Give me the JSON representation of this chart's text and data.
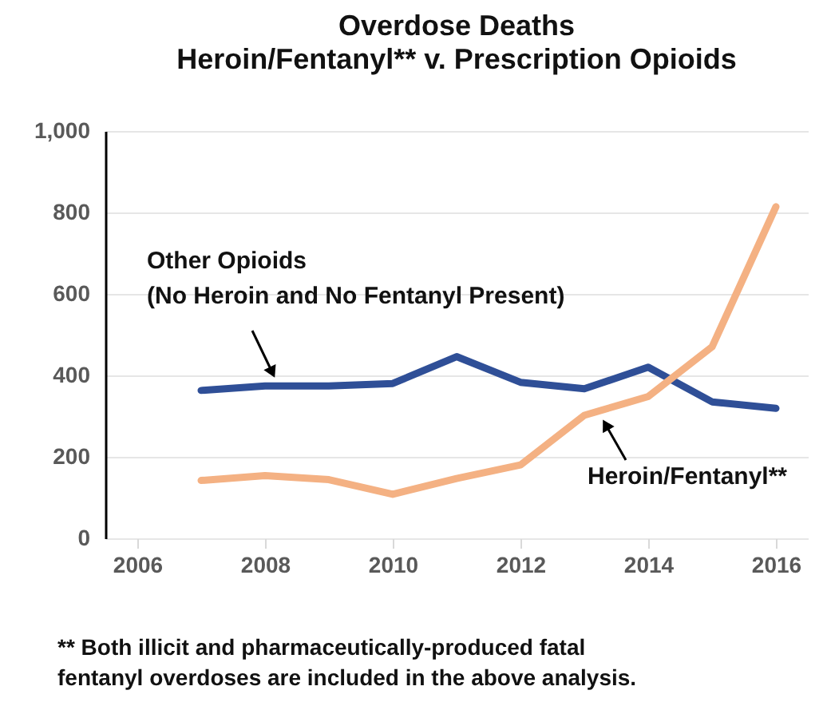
{
  "chart_data": {
    "type": "line",
    "title": "Overdose Deaths",
    "subtitle": "Heroin/Fentanyl** v. Prescription Opioids",
    "x": [
      2007,
      2008,
      2009,
      2010,
      2011,
      2012,
      2013,
      2014,
      2015,
      2016
    ],
    "series": [
      {
        "name": "Other Opioids\n(No Heroin and No Fentanyl Present)",
        "color": "#2f4f97",
        "values": [
          363,
          374,
          374,
          380,
          446,
          383,
          367,
          420,
          335,
          319
        ]
      },
      {
        "name": "Heroin/Fentanyl**",
        "color": "#f4b183",
        "values": [
          142,
          154,
          144,
          108,
          147,
          180,
          302,
          348,
          470,
          814
        ]
      }
    ],
    "xlim": [
      2005.5,
      2016.5
    ],
    "xticks": [
      2006,
      2008,
      2010,
      2012,
      2014,
      2016
    ],
    "ylim": [
      0,
      1000
    ],
    "yticks": [
      0,
      200,
      400,
      600,
      800,
      {
        "value": 1000,
        "label": "1,000"
      }
    ],
    "grid": "y",
    "marker": "none",
    "line_style": "solid",
    "annotations": [
      "** Both illicit and pharmaceutically-produced fatal\n    fentanyl overdoses are included in the above analysis."
    ]
  }
}
